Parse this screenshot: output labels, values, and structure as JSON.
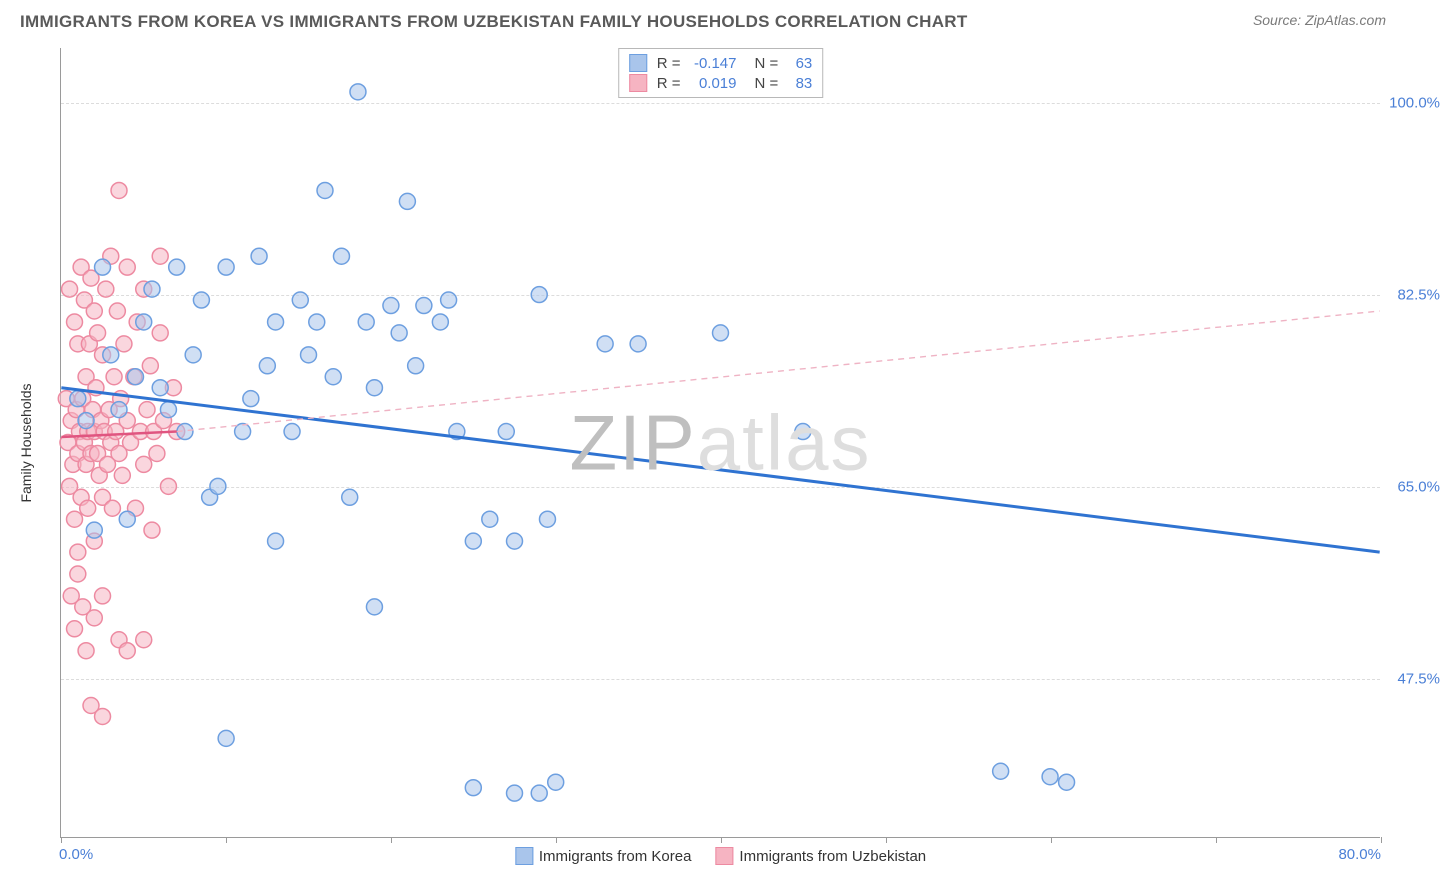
{
  "header": {
    "title": "IMMIGRANTS FROM KOREA VS IMMIGRANTS FROM UZBEKISTAN FAMILY HOUSEHOLDS CORRELATION CHART",
    "source": "Source: ZipAtlas.com"
  },
  "chart": {
    "type": "scatter",
    "y_axis_label": "Family Households",
    "xlim": [
      0,
      80
    ],
    "ylim": [
      33,
      105
    ],
    "x_ticks": [
      0,
      10,
      20,
      30,
      40,
      50,
      60,
      70,
      80
    ],
    "x_tick_labels": {
      "0": "0.0%",
      "80": "80.0%"
    },
    "y_ticks": [
      47.5,
      65.0,
      82.5,
      100.0
    ],
    "y_tick_labels": [
      "47.5%",
      "65.0%",
      "82.5%",
      "100.0%"
    ],
    "grid_color": "#dcdcdc",
    "axis_color": "#9a9a9a",
    "tick_label_color": "#4a7fd6",
    "background_color": "#ffffff",
    "marker_radius": 8,
    "marker_stroke_width": 1.5,
    "watermark": {
      "text1": "ZIP",
      "text2": "atlas",
      "color1": "#bfbfbf",
      "color2": "#dedede"
    },
    "series": [
      {
        "name": "Immigrants from Korea",
        "fill": "#a9c5eb",
        "stroke": "#6d9fe0",
        "fill_opacity": 0.55,
        "R": "-0.147",
        "N": "63",
        "trend": {
          "x1": 0,
          "y1": 74,
          "x2": 80,
          "y2": 59,
          "color": "#2f73d1",
          "width": 3,
          "dash": "none"
        },
        "trend_ext": null,
        "points": [
          [
            1,
            73
          ],
          [
            1.5,
            71
          ],
          [
            2,
            61
          ],
          [
            2.5,
            85
          ],
          [
            3,
            77
          ],
          [
            3.5,
            72
          ],
          [
            4,
            62
          ],
          [
            4.5,
            75
          ],
          [
            5,
            80
          ],
          [
            5.5,
            83
          ],
          [
            6,
            74
          ],
          [
            6.5,
            72
          ],
          [
            7,
            85
          ],
          [
            7.5,
            70
          ],
          [
            8,
            77
          ],
          [
            8.5,
            82
          ],
          [
            9,
            64
          ],
          [
            9.5,
            65
          ],
          [
            10,
            85
          ],
          [
            10,
            42
          ],
          [
            11,
            70
          ],
          [
            11.5,
            73
          ],
          [
            12,
            86
          ],
          [
            12.5,
            76
          ],
          [
            13,
            80
          ],
          [
            13,
            60
          ],
          [
            14,
            70
          ],
          [
            14.5,
            82
          ],
          [
            15,
            77
          ],
          [
            15.5,
            80
          ],
          [
            16,
            92
          ],
          [
            16.5,
            75
          ],
          [
            17,
            86
          ],
          [
            17.5,
            64
          ],
          [
            18,
            101
          ],
          [
            18.5,
            80
          ],
          [
            19,
            74
          ],
          [
            19,
            54
          ],
          [
            20,
            81.5
          ],
          [
            20.5,
            79
          ],
          [
            21,
            91
          ],
          [
            21.5,
            76
          ],
          [
            22,
            81.5
          ],
          [
            23,
            80
          ],
          [
            23.5,
            82
          ],
          [
            24,
            70
          ],
          [
            25,
            60
          ],
          [
            25,
            37.5
          ],
          [
            26,
            62
          ],
          [
            27,
            70
          ],
          [
            27.5,
            60
          ],
          [
            27.5,
            37
          ],
          [
            29,
            82.5
          ],
          [
            29.5,
            62
          ],
          [
            29,
            37
          ],
          [
            30,
            38
          ],
          [
            33,
            78
          ],
          [
            35,
            78
          ],
          [
            40,
            79
          ],
          [
            45,
            70
          ],
          [
            57,
            39
          ],
          [
            60,
            38.5
          ],
          [
            61,
            38
          ]
        ]
      },
      {
        "name": "Immigrants from Uzbekistan",
        "fill": "#f6b4c2",
        "stroke": "#ed8aa1",
        "fill_opacity": 0.55,
        "R": "0.019",
        "N": "83",
        "trend": {
          "x1": 0,
          "y1": 69.5,
          "x2": 7,
          "y2": 70,
          "color": "#e05580",
          "width": 2.5,
          "dash": "none"
        },
        "trend_ext": {
          "x1": 7,
          "y1": 70,
          "x2": 80,
          "y2": 81,
          "color": "#efb3c4",
          "width": 1.4,
          "dash": "6,5"
        },
        "points": [
          [
            0.3,
            73
          ],
          [
            0.4,
            69
          ],
          [
            0.5,
            65
          ],
          [
            0.5,
            83
          ],
          [
            0.6,
            71
          ],
          [
            0.7,
            67
          ],
          [
            0.8,
            80
          ],
          [
            0.8,
            62
          ],
          [
            0.9,
            72
          ],
          [
            1,
            68
          ],
          [
            1,
            78
          ],
          [
            1,
            59
          ],
          [
            1.1,
            70
          ],
          [
            1.2,
            85
          ],
          [
            1.2,
            64
          ],
          [
            1.3,
            73
          ],
          [
            1.4,
            69
          ],
          [
            1.4,
            82
          ],
          [
            1.5,
            67
          ],
          [
            1.5,
            75
          ],
          [
            1.6,
            70
          ],
          [
            1.6,
            63
          ],
          [
            1.7,
            78
          ],
          [
            1.8,
            84
          ],
          [
            1.8,
            68
          ],
          [
            1.9,
            72
          ],
          [
            2,
            70
          ],
          [
            2,
            81
          ],
          [
            2,
            60
          ],
          [
            2.1,
            74
          ],
          [
            2.2,
            68
          ],
          [
            2.2,
            79
          ],
          [
            2.3,
            66
          ],
          [
            2.4,
            71
          ],
          [
            2.5,
            77
          ],
          [
            2.5,
            64
          ],
          [
            2.6,
            70
          ],
          [
            2.7,
            83
          ],
          [
            2.8,
            67
          ],
          [
            2.9,
            72
          ],
          [
            3,
            69
          ],
          [
            3,
            86
          ],
          [
            3.1,
            63
          ],
          [
            3.2,
            75
          ],
          [
            3.3,
            70
          ],
          [
            3.4,
            81
          ],
          [
            3.5,
            68
          ],
          [
            3.5,
            92
          ],
          [
            3.6,
            73
          ],
          [
            3.7,
            66
          ],
          [
            3.8,
            78
          ],
          [
            4,
            71
          ],
          [
            4,
            85
          ],
          [
            4.2,
            69
          ],
          [
            4.4,
            75
          ],
          [
            4.5,
            63
          ],
          [
            4.6,
            80
          ],
          [
            4.8,
            70
          ],
          [
            5,
            67
          ],
          [
            5,
            83
          ],
          [
            5.2,
            72
          ],
          [
            5.4,
            76
          ],
          [
            5.5,
            61
          ],
          [
            5.6,
            70
          ],
          [
            5.8,
            68
          ],
          [
            6,
            79
          ],
          [
            6,
            86
          ],
          [
            6.2,
            71
          ],
          [
            6.5,
            65
          ],
          [
            6.8,
            74
          ],
          [
            7,
            70
          ],
          [
            0.6,
            55
          ],
          [
            0.8,
            52
          ],
          [
            1,
            57
          ],
          [
            1.3,
            54
          ],
          [
            1.5,
            50
          ],
          [
            2,
            53
          ],
          [
            2.5,
            55
          ],
          [
            1.8,
            45
          ],
          [
            2.5,
            44
          ],
          [
            3.5,
            51
          ],
          [
            4,
            50
          ],
          [
            5,
            51
          ]
        ]
      }
    ],
    "legend_bottom": [
      {
        "label": "Immigrants from Korea",
        "fill": "#a9c5eb",
        "stroke": "#6d9fe0"
      },
      {
        "label": "Immigrants from Uzbekistan",
        "fill": "#f6b4c2",
        "stroke": "#ed8aa1"
      }
    ]
  }
}
